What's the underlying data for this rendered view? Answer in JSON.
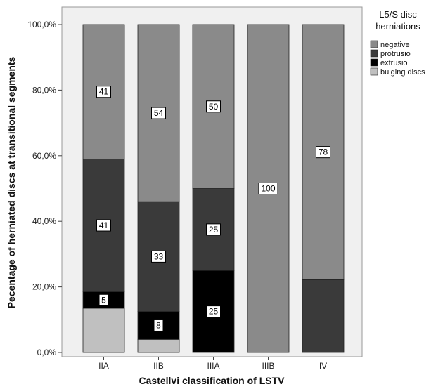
{
  "chart_data": {
    "type": "bar",
    "stacked": true,
    "xlabel": "Castellvi classification of LSTV",
    "ylabel": "Pecentage of herniated discs at transitional segments",
    "categories": [
      "IIA",
      "IIB",
      "IIIA",
      "IIIB",
      "IV"
    ],
    "ylim": [
      0,
      100
    ],
    "yticks": [
      "0,0%",
      "20,0%",
      "40,0%",
      "60,0%",
      "80,0%",
      "100,0%"
    ],
    "legend": {
      "title": "L5/S disc\nherniations",
      "placement": "right",
      "entries": [
        "negative",
        "protrusio",
        "extrusio",
        "bulging discs"
      ]
    },
    "colors": {
      "negative": "#8a8a8a",
      "protrusio": "#3a3a3a",
      "extrusio": "#000000",
      "bulging discs": "#c0c0c0",
      "plot_background": "#f0f0f0"
    },
    "series": [
      {
        "name": "bulging discs",
        "values": [
          13.5,
          4,
          0,
          0,
          0
        ],
        "labels": [
          "",
          "",
          "",
          "",
          ""
        ]
      },
      {
        "name": "extrusio",
        "values": [
          5,
          8.5,
          25,
          0,
          0
        ],
        "labels": [
          "5",
          "8",
          "25",
          "",
          ""
        ]
      },
      {
        "name": "protrusio",
        "values": [
          40.5,
          33.5,
          25,
          0,
          22.2
        ],
        "labels": [
          "41",
          "33",
          "25",
          "",
          ""
        ]
      },
      {
        "name": "negative",
        "values": [
          41,
          54,
          50,
          100,
          77.8
        ],
        "labels": [
          "41",
          "54",
          "50",
          "100",
          "78"
        ]
      }
    ]
  }
}
